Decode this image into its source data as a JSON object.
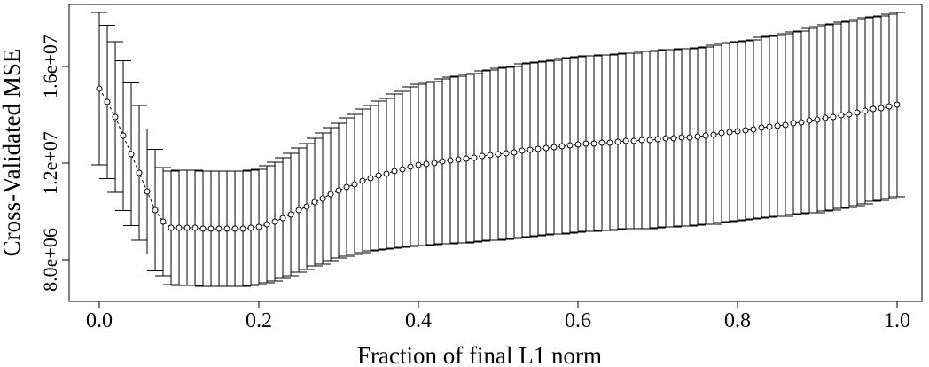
{
  "chart_data": {
    "type": "scatter",
    "xlabel": "Fraction of final L1 norm",
    "ylabel": "Cross-Validated MSE",
    "x": [
      0,
      0.01,
      0.02,
      0.03,
      0.04,
      0.05,
      0.06,
      0.07,
      0.08,
      0.09,
      0.1,
      0.11,
      0.12,
      0.13,
      0.14,
      0.15,
      0.16,
      0.17,
      0.18,
      0.19,
      0.2,
      0.21,
      0.22,
      0.23,
      0.24,
      0.25,
      0.26,
      0.27,
      0.28,
      0.29,
      0.3,
      0.31,
      0.32,
      0.33,
      0.34,
      0.35,
      0.36,
      0.37,
      0.38,
      0.39,
      0.4,
      0.41,
      0.42,
      0.43,
      0.44,
      0.45,
      0.46,
      0.47,
      0.48,
      0.49,
      0.5,
      0.51,
      0.52,
      0.53,
      0.54,
      0.55,
      0.56,
      0.57,
      0.58,
      0.59,
      0.6,
      0.61,
      0.62,
      0.63,
      0.64,
      0.65,
      0.66,
      0.67,
      0.68,
      0.69,
      0.7,
      0.71,
      0.72,
      0.73,
      0.74,
      0.75,
      0.76,
      0.77,
      0.78,
      0.79,
      0.8,
      0.81,
      0.82,
      0.83,
      0.84,
      0.85,
      0.86,
      0.87,
      0.88,
      0.89,
      0.9,
      0.91,
      0.92,
      0.93,
      0.94,
      0.95,
      0.96,
      0.97,
      0.98,
      0.99,
      1
    ],
    "series": [
      {
        "color": "#000000",
        "values": [
          15083000,
          14532000,
          13908000,
          13138000,
          12367000,
          11596000,
          10826000,
          10055000,
          9578000,
          9321000,
          9321000,
          9321000,
          9321000,
          9284000,
          9284000,
          9284000,
          9284000,
          9284000,
          9284000,
          9321000,
          9358000,
          9468000,
          9578000,
          9725000,
          9872000,
          10055000,
          10202000,
          10385000,
          10532000,
          10716000,
          10862000,
          11009000,
          11119000,
          11266000,
          11376000,
          11486000,
          11560000,
          11670000,
          11743000,
          11853000,
          11927000,
          11963000,
          12000000,
          12073000,
          12110000,
          12147000,
          12184000,
          12220000,
          12294000,
          12330000,
          12367000,
          12404000,
          12440000,
          12514000,
          12550000,
          12587000,
          12624000,
          12661000,
          12697000,
          12734000,
          12771000,
          12807000,
          12807000,
          12844000,
          12844000,
          12881000,
          12917000,
          12917000,
          12954000,
          12954000,
          12991000,
          13028000,
          13028000,
          13064000,
          13064000,
          13101000,
          13138000,
          13174000,
          13248000,
          13284000,
          13321000,
          13358000,
          13395000,
          13468000,
          13505000,
          13541000,
          13578000,
          13651000,
          13688000,
          13761000,
          13798000,
          13872000,
          13908000,
          13982000,
          14018000,
          14092000,
          14165000,
          14239000,
          14275000,
          14349000,
          14422000
        ],
        "errors": [
          3156000,
          3174000,
          3119000,
          3101000,
          2954000,
          2789000,
          2587000,
          2514000,
          2239000,
          2349000,
          2385000,
          2385000,
          2385000,
          2385000,
          2385000,
          2385000,
          2385000,
          2385000,
          2385000,
          2385000,
          2385000,
          2422000,
          2459000,
          2495000,
          2532000,
          2569000,
          2605000,
          2642000,
          2716000,
          2752000,
          2789000,
          2862000,
          2899000,
          2972000,
          3009000,
          3083000,
          3119000,
          3193000,
          3229000,
          3303000,
          3339000,
          3376000,
          3376000,
          3413000,
          3450000,
          3450000,
          3486000,
          3486000,
          3523000,
          3523000,
          3560000,
          3560000,
          3560000,
          3596000,
          3596000,
          3596000,
          3596000,
          3596000,
          3633000,
          3633000,
          3633000,
          3633000,
          3633000,
          3633000,
          3633000,
          3633000,
          3633000,
          3633000,
          3670000,
          3670000,
          3670000,
          3670000,
          3670000,
          3670000,
          3670000,
          3670000,
          3670000,
          3706000,
          3706000,
          3706000,
          3706000,
          3706000,
          3706000,
          3743000,
          3743000,
          3743000,
          3780000,
          3780000,
          3780000,
          3816000,
          3853000,
          3853000,
          3853000,
          3853000,
          3853000,
          3853000,
          3853000,
          3816000,
          3816000,
          3816000,
          3816000
        ]
      }
    ],
    "xlim": [
      -0.0378,
      1.0311
    ],
    "ylim": [
      6275000,
      18570000
    ],
    "xticks": [
      {
        "value": 0,
        "label": "0.0"
      },
      0.2,
      0.4,
      0.6,
      0.8,
      {
        "value": 1,
        "label": "1.0"
      }
    ],
    "yticks": [
      {
        "value": 8000000,
        "label": "8.0e+06"
      },
      {
        "value": 12000000,
        "label": "1.2e+07"
      },
      {
        "value": 16000000,
        "label": "1.6e+07"
      }
    ],
    "grid": false
  }
}
